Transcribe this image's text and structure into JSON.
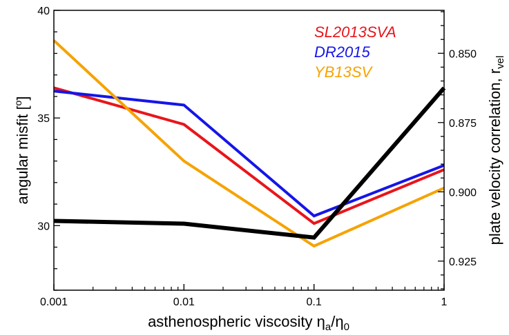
{
  "chart_data": {
    "type": "line",
    "x_scale": "log",
    "x": [
      0.001,
      0.01,
      0.1,
      1
    ],
    "xticks": [
      "0.001",
      "0.01",
      "0.1",
      "1"
    ],
    "xlim": [
      0.001,
      1
    ],
    "xlabel": {
      "prefix": "asthenospheric viscosity ",
      "num": "η",
      "num_sub": "a",
      "sep": "/",
      "den": "η",
      "den_sub": "0"
    },
    "ylabel": "angular misfit  [ ]",
    "ylabel_left": {
      "text": "angular misfit  [",
      "degree": "o",
      "close": "]"
    },
    "ylim": [
      27.0,
      40.0
    ],
    "yticks": [
      "30",
      "35",
      "40"
    ],
    "y2label": {
      "text": "plate velocity correlation, r",
      "sub": "vel"
    },
    "y2lim": [
      0.8345,
      0.9355
    ],
    "y2ticks": [
      "0.850",
      "0.875",
      "0.900",
      "0.925"
    ],
    "grid": false,
    "legend_position": "top-right",
    "series": [
      {
        "name": "SL2013SVA",
        "color": "#e8151b",
        "axis": "left",
        "values": [
          36.4,
          34.7,
          30.1,
          32.6
        ]
      },
      {
        "name": "DR2015",
        "color": "#1515e8",
        "axis": "left",
        "values": [
          36.25,
          35.6,
          30.45,
          32.8
        ]
      },
      {
        "name": "YB13SV",
        "color": "#f5a300",
        "axis": "left",
        "values": [
          38.6,
          33.0,
          29.05,
          31.75
        ]
      },
      {
        "name": "",
        "color": "#000000",
        "axis": "right",
        "values": [
          0.9105,
          0.9115,
          0.9165,
          0.8625
        ]
      }
    ]
  }
}
